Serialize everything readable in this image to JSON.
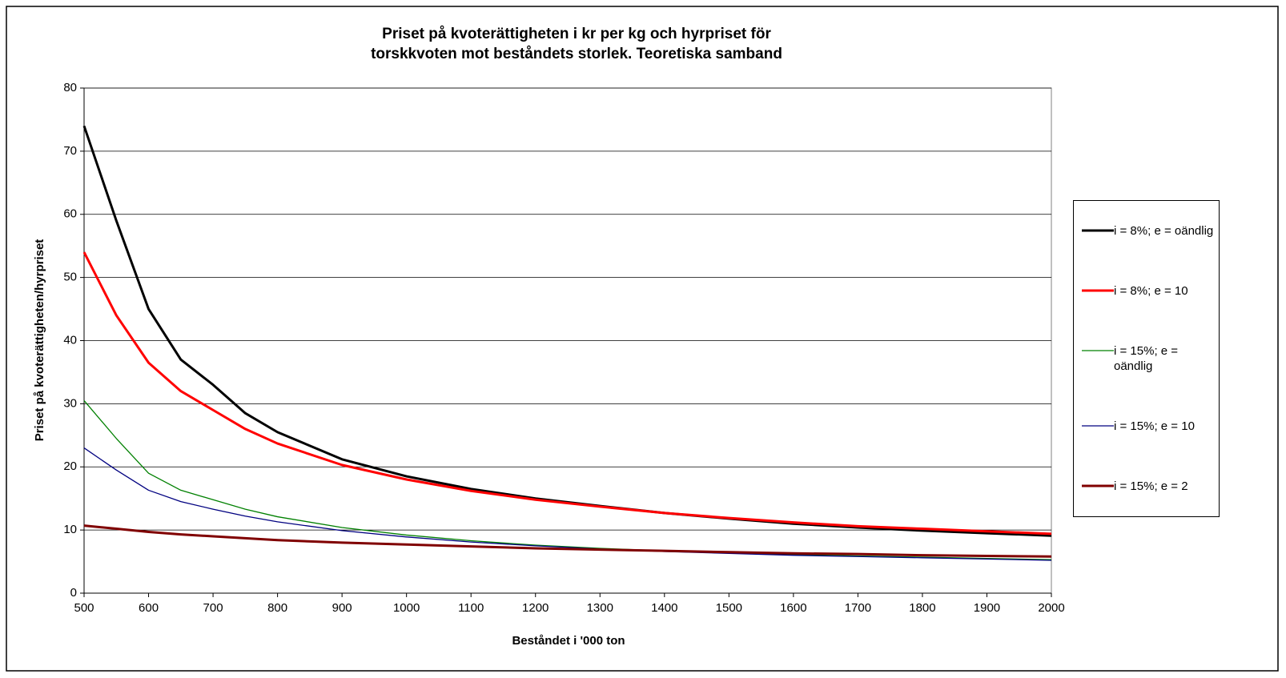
{
  "chart_data": {
    "type": "line",
    "title": "Priset på kvoterättigheten i kr per kg och hyrpriset för\ntorskkvoten mot beståndets storlek. Teoretiska samband",
    "x_label": "Beståndet i '000 ton",
    "y_label": "Priset på kvoterättigheten/hyrpriset",
    "x": [
      500,
      550,
      600,
      650,
      700,
      750,
      800,
      900,
      1000,
      1100,
      1200,
      1300,
      1400,
      1500,
      1600,
      1700,
      1800,
      1900,
      2000
    ],
    "xlim": [
      500,
      2000
    ],
    "xticks": [
      500,
      600,
      700,
      800,
      900,
      1000,
      1100,
      1200,
      1300,
      1400,
      1500,
      1600,
      1700,
      1800,
      1900,
      2000
    ],
    "ylim": [
      0,
      80
    ],
    "yticks": [
      0,
      10,
      20,
      30,
      40,
      50,
      60,
      70,
      80
    ],
    "grid": true,
    "legend": "right",
    "series": [
      {
        "name": "i = 8%; e = oändlig",
        "color": "#000000",
        "width": 3,
        "values": [
          74,
          59,
          45,
          37,
          33,
          28.5,
          25.5,
          21.2,
          18.5,
          16.5,
          15,
          13.8,
          12.7,
          11.8,
          11,
          10.4,
          9.9,
          9.5,
          9.1
        ]
      },
      {
        "name": "i = 8%; e = 10",
        "color": "#ff0000",
        "width": 3,
        "values": [
          54,
          44,
          36.5,
          32,
          29,
          26,
          23.7,
          20.3,
          18,
          16.2,
          14.8,
          13.7,
          12.7,
          11.9,
          11.2,
          10.6,
          10.2,
          9.8,
          9.4
        ]
      },
      {
        "name": "i = 15%; e = oändlig",
        "color": "#008000",
        "width": 1.3,
        "values": [
          30.5,
          24.5,
          19,
          16.3,
          14.8,
          13.3,
          12.1,
          10.4,
          9.2,
          8.3,
          7.6,
          7.1,
          6.7,
          6.4,
          6.1,
          5.9,
          5.7,
          5.5,
          5.3
        ]
      },
      {
        "name": "i = 15%; e = 10",
        "color": "#000080",
        "width": 1.3,
        "values": [
          23,
          19.5,
          16.3,
          14.5,
          13.3,
          12.2,
          11.3,
          9.9,
          8.9,
          8.1,
          7.5,
          7,
          6.6,
          6.3,
          6,
          5.8,
          5.6,
          5.4,
          5.2
        ]
      },
      {
        "name": "i = 15%; e = 2",
        "color": "#800000",
        "width": 3,
        "values": [
          10.7,
          10.2,
          9.7,
          9.3,
          9,
          8.7,
          8.4,
          8,
          7.7,
          7.4,
          7.1,
          6.9,
          6.7,
          6.5,
          6.3,
          6.2,
          6,
          5.9,
          5.8
        ]
      }
    ]
  }
}
